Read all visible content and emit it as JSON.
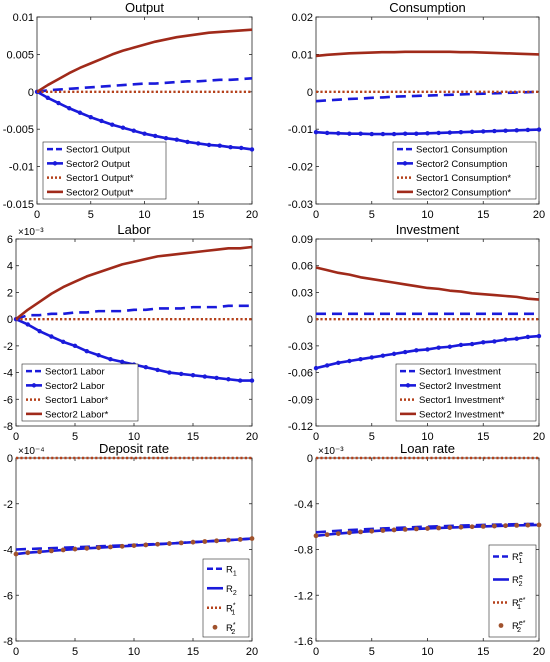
{
  "chart_data": [
    {
      "type": "line",
      "title": "Output",
      "x": [
        0,
        1,
        2,
        3,
        4,
        5,
        6,
        7,
        8,
        9,
        10,
        11,
        12,
        13,
        14,
        15,
        16,
        17,
        18,
        19,
        20
      ],
      "xlim": [
        0,
        20
      ],
      "xticks": [
        0,
        5,
        10,
        15,
        20
      ],
      "ylim": [
        -0.015,
        0.01
      ],
      "yticks": [
        -0.015,
        -0.01,
        -0.005,
        0,
        0.005,
        0.01
      ],
      "yticklabels": [
        "-0.015",
        "-0.01",
        "-0.005",
        "0",
        "0.005",
        "0.01"
      ],
      "multiplier": "",
      "legend_position": "bottom-left",
      "series": [
        {
          "name": "Sector1 Output",
          "style": "dashed",
          "color": "#1a1adb",
          "values": [
            0,
            0.0002,
            0.0003,
            0.0004,
            0.0005,
            0.0006,
            0.0007,
            0.0008,
            0.0009,
            0.001,
            0.0011,
            0.0011,
            0.0012,
            0.0013,
            0.0014,
            0.0014,
            0.0015,
            0.0016,
            0.0016,
            0.0017,
            0.0018
          ]
        },
        {
          "name": "Sector2 Output",
          "style": "solid-dots",
          "color": "#1a1adb",
          "values": [
            0,
            -0.0008,
            -0.0015,
            -0.0022,
            -0.0028,
            -0.0034,
            -0.0039,
            -0.0044,
            -0.0048,
            -0.0052,
            -0.0056,
            -0.0059,
            -0.0062,
            -0.0064,
            -0.0067,
            -0.0069,
            -0.0071,
            -0.0072,
            -0.0074,
            -0.0075,
            -0.0077
          ]
        },
        {
          "name": "Sector1 Output*",
          "style": "dotted",
          "color": "#b5411b",
          "values": [
            0,
            0,
            0,
            0,
            0,
            0,
            0,
            0,
            0,
            0,
            0,
            0,
            0,
            0,
            0,
            0,
            0,
            0,
            0,
            0,
            0
          ]
        },
        {
          "name": "Sector2 Output*",
          "style": "solid",
          "color": "#a02a1a",
          "values": [
            0,
            0.0009,
            0.0017,
            0.0025,
            0.0032,
            0.0038,
            0.0044,
            0.005,
            0.0055,
            0.0059,
            0.0063,
            0.0067,
            0.007,
            0.0073,
            0.0075,
            0.0077,
            0.0079,
            0.008,
            0.0081,
            0.0082,
            0.0083
          ]
        }
      ]
    },
    {
      "type": "line",
      "title": "Consumption",
      "x": [
        0,
        1,
        2,
        3,
        4,
        5,
        6,
        7,
        8,
        9,
        10,
        11,
        12,
        13,
        14,
        15,
        16,
        17,
        18,
        19,
        20
      ],
      "xlim": [
        0,
        20
      ],
      "xticks": [
        0,
        5,
        10,
        15,
        20
      ],
      "ylim": [
        -0.03,
        0.02
      ],
      "yticks": [
        -0.03,
        -0.02,
        -0.01,
        0,
        0.01,
        0.02
      ],
      "yticklabels": [
        "-0.03",
        "-0.02",
        "-0.01",
        "0",
        "0.01",
        "0.02"
      ],
      "multiplier": "",
      "legend_position": "bottom-right",
      "series": [
        {
          "name": "Sector1 Consumption",
          "style": "dashed",
          "color": "#1a1adb",
          "values": [
            -0.0025,
            -0.0023,
            -0.0021,
            -0.0019,
            -0.0018,
            -0.0016,
            -0.0015,
            -0.0013,
            -0.0012,
            -0.0011,
            -0.001,
            -0.0009,
            -0.0008,
            -0.0007,
            -0.0006,
            -0.0005,
            -0.0004,
            -0.0003,
            -0.0002,
            -0.0001,
            0
          ]
        },
        {
          "name": "Sector2 Consumption",
          "style": "solid-dots",
          "color": "#1a1adb",
          "values": [
            -0.0108,
            -0.011,
            -0.0111,
            -0.0112,
            -0.0112,
            -0.0113,
            -0.0113,
            -0.0113,
            -0.0112,
            -0.0112,
            -0.0111,
            -0.011,
            -0.0109,
            -0.0108,
            -0.0107,
            -0.0106,
            -0.0105,
            -0.0104,
            -0.0103,
            -0.0102,
            -0.0101
          ]
        },
        {
          "name": "Sector1 Consumption*",
          "style": "dotted",
          "color": "#b5411b",
          "values": [
            0,
            0,
            0,
            0,
            0,
            0,
            0,
            0,
            0,
            0,
            0,
            0,
            0,
            0,
            0,
            0,
            0,
            0,
            0,
            0,
            0
          ]
        },
        {
          "name": "Sector2 Consumption*",
          "style": "solid",
          "color": "#a02a1a",
          "values": [
            0.0096,
            0.0099,
            0.0101,
            0.0103,
            0.0104,
            0.0105,
            0.0106,
            0.0106,
            0.0107,
            0.0107,
            0.0107,
            0.0107,
            0.0107,
            0.0106,
            0.0106,
            0.0105,
            0.0104,
            0.0103,
            0.0102,
            0.0101,
            0.01
          ]
        }
      ]
    },
    {
      "type": "line",
      "title": "Labor",
      "x": [
        0,
        1,
        2,
        3,
        4,
        5,
        6,
        7,
        8,
        9,
        10,
        11,
        12,
        13,
        14,
        15,
        16,
        17,
        18,
        19,
        20
      ],
      "xlim": [
        0,
        20
      ],
      "xticks": [
        0,
        5,
        10,
        15,
        20
      ],
      "ylim": [
        -0.008,
        0.006
      ],
      "yticks": [
        -0.008,
        -0.006,
        -0.004,
        -0.002,
        0,
        0.002,
        0.004,
        0.006
      ],
      "yticklabels": [
        "-8",
        "-6",
        "-4",
        "-2",
        "0",
        "2",
        "4",
        "6"
      ],
      "multiplier": "×10⁻³",
      "legend_position": "bottom-left",
      "series": [
        {
          "name": "Sector1 Labor",
          "style": "dashed",
          "color": "#1a1adb",
          "values": [
            0,
            0.0003,
            0.0003,
            0.0004,
            0.0004,
            0.0005,
            0.0005,
            0.0006,
            0.0006,
            0.0006,
            0.0007,
            0.0007,
            0.0008,
            0.0008,
            0.0008,
            0.0009,
            0.0009,
            0.0009,
            0.001,
            0.001,
            0.001
          ]
        },
        {
          "name": "Sector2 Labor",
          "style": "solid-dots",
          "color": "#1a1adb",
          "values": [
            0,
            -0.0004,
            -0.0009,
            -0.0013,
            -0.0017,
            -0.002,
            -0.0024,
            -0.0027,
            -0.003,
            -0.0032,
            -0.0034,
            -0.0036,
            -0.0038,
            -0.004,
            -0.0041,
            -0.0042,
            -0.0043,
            -0.0044,
            -0.0045,
            -0.0046,
            -0.0046
          ]
        },
        {
          "name": "Sector1 Labor*",
          "style": "dotted",
          "color": "#b5411b",
          "values": [
            0,
            0,
            0,
            0,
            0,
            0,
            0,
            0,
            0,
            0,
            0,
            0,
            0,
            0,
            0,
            0,
            0,
            0,
            0,
            0,
            0
          ]
        },
        {
          "name": "Sector2 Labor*",
          "style": "solid",
          "color": "#a02a1a",
          "values": [
            0,
            0.0007,
            0.0013,
            0.0019,
            0.0024,
            0.0028,
            0.0032,
            0.0035,
            0.0038,
            0.0041,
            0.0043,
            0.0045,
            0.0047,
            0.0048,
            0.0049,
            0.005,
            0.0051,
            0.0052,
            0.0053,
            0.0053,
            0.0054
          ]
        }
      ]
    },
    {
      "type": "line",
      "title": "Investment",
      "x": [
        0,
        1,
        2,
        3,
        4,
        5,
        6,
        7,
        8,
        9,
        10,
        11,
        12,
        13,
        14,
        15,
        16,
        17,
        18,
        19,
        20
      ],
      "xlim": [
        0,
        20
      ],
      "xticks": [
        0,
        5,
        10,
        15,
        20
      ],
      "ylim": [
        -0.12,
        0.09
      ],
      "yticks": [
        -0.12,
        -0.09,
        -0.06,
        -0.03,
        0,
        0.03,
        0.06,
        0.09
      ],
      "yticklabels": [
        "-0.12",
        "-0.09",
        "-0.06",
        "-0.03",
        "0",
        "0.03",
        "0.06",
        "0.09"
      ],
      "multiplier": "",
      "legend_position": "bottom-right",
      "series": [
        {
          "name": "Sector1 Investment",
          "style": "dashed",
          "color": "#1a1adb",
          "values": [
            0.006,
            0.006,
            0.006,
            0.006,
            0.006,
            0.006,
            0.006,
            0.006,
            0.006,
            0.006,
            0.006,
            0.006,
            0.006,
            0.006,
            0.006,
            0.006,
            0.006,
            0.006,
            0.006,
            0.006,
            0.006
          ]
        },
        {
          "name": "Sector2 Investment",
          "style": "solid-dots",
          "color": "#1a1adb",
          "values": [
            -0.055,
            -0.052,
            -0.049,
            -0.047,
            -0.045,
            -0.043,
            -0.041,
            -0.039,
            -0.037,
            -0.035,
            -0.034,
            -0.032,
            -0.031,
            -0.029,
            -0.028,
            -0.026,
            -0.025,
            -0.023,
            -0.022,
            -0.02,
            -0.019
          ]
        },
        {
          "name": "Sector1 Investment*",
          "style": "dotted",
          "color": "#b5411b",
          "values": [
            0,
            0,
            0,
            0,
            0,
            0,
            0,
            0,
            0,
            0,
            0,
            0,
            0,
            0,
            0,
            0,
            0,
            0,
            0,
            0,
            0
          ]
        },
        {
          "name": "Sector2 Investment*",
          "style": "solid",
          "color": "#a02a1a",
          "values": [
            0.058,
            0.055,
            0.052,
            0.05,
            0.047,
            0.045,
            0.043,
            0.041,
            0.039,
            0.037,
            0.035,
            0.034,
            0.032,
            0.031,
            0.029,
            0.028,
            0.027,
            0.026,
            0.025,
            0.023,
            0.022
          ]
        }
      ]
    },
    {
      "type": "line",
      "title": "Deposit rate",
      "x": [
        0,
        1,
        2,
        3,
        4,
        5,
        6,
        7,
        8,
        9,
        10,
        11,
        12,
        13,
        14,
        15,
        16,
        17,
        18,
        19,
        20
      ],
      "xlim": [
        0,
        20
      ],
      "xticks": [
        0,
        5,
        10,
        15,
        20
      ],
      "ylim": [
        -0.0008,
        0
      ],
      "yticks": [
        -0.0008,
        -0.0006,
        -0.0004,
        -0.0002,
        0
      ],
      "yticklabels": [
        "-8",
        "-6",
        "-4",
        "-2",
        "0"
      ],
      "multiplier": "×10⁻⁴",
      "legend_position": "bottom-right",
      "series": [
        {
          "name": "R1",
          "sub": "1",
          "sup": "",
          "style": "dashed",
          "color": "#1a1adb",
          "values": [
            -0.0004,
            -0.000398,
            -0.000396,
            -0.000394,
            -0.000392,
            -0.00039,
            -0.000388,
            -0.000386,
            -0.000384,
            -0.000382,
            -0.00038,
            -0.000378,
            -0.000376,
            -0.000374,
            -0.000371,
            -0.000368,
            -0.000365,
            -0.000362,
            -0.000359,
            -0.000356,
            -0.000352
          ]
        },
        {
          "name": "R2",
          "sub": "2",
          "sup": "",
          "style": "solid",
          "color": "#1a1adb",
          "values": [
            -0.00042,
            -0.000414,
            -0.00041,
            -0.000406,
            -0.000402,
            -0.000398,
            -0.000395,
            -0.000392,
            -0.000389,
            -0.000386,
            -0.000383,
            -0.00038,
            -0.000377,
            -0.000374,
            -0.000371,
            -0.000368,
            -0.000365,
            -0.000362,
            -0.000359,
            -0.000356,
            -0.000352
          ]
        },
        {
          "name": "R1*",
          "sub": "1",
          "sup": "*",
          "style": "dotted",
          "color": "#b5411b",
          "values": [
            0,
            0,
            0,
            0,
            0,
            0,
            0,
            0,
            0,
            0,
            0,
            0,
            0,
            0,
            0,
            0,
            0,
            0,
            0,
            0,
            0
          ]
        },
        {
          "name": "R2*",
          "sub": "2",
          "sup": "*",
          "style": "dots",
          "color": "#a0522d",
          "values": [
            -0.00042,
            -0.000414,
            -0.00041,
            -0.000406,
            -0.000402,
            -0.000398,
            -0.000395,
            -0.000392,
            -0.000389,
            -0.000386,
            -0.000383,
            -0.00038,
            -0.000377,
            -0.000374,
            -0.000371,
            -0.000368,
            -0.000365,
            -0.000362,
            -0.000359,
            -0.000356,
            -0.000352
          ]
        }
      ]
    },
    {
      "type": "line",
      "title": "Loan rate",
      "x": [
        0,
        1,
        2,
        3,
        4,
        5,
        6,
        7,
        8,
        9,
        10,
        11,
        12,
        13,
        14,
        15,
        16,
        17,
        18,
        19,
        20
      ],
      "xlim": [
        0,
        20
      ],
      "xticks": [
        0,
        5,
        10,
        15,
        20
      ],
      "ylim": [
        -0.0016,
        0
      ],
      "yticks": [
        -0.0016,
        -0.0012,
        -0.0008,
        -0.0004,
        0
      ],
      "yticklabels": [
        "-1.6",
        "-1.2",
        "-0.8",
        "-0.4",
        "0"
      ],
      "multiplier": "×10⁻³",
      "legend_position": "bottom-right",
      "series": [
        {
          "name": "R1e",
          "sub": "1",
          "sup": "e",
          "style": "dashed",
          "color": "#1a1adb",
          "values": [
            -0.00065,
            -0.000643,
            -0.000636,
            -0.00063,
            -0.000625,
            -0.00062,
            -0.000616,
            -0.000612,
            -0.000608,
            -0.000604,
            -0.0006,
            -0.000597,
            -0.000594,
            -0.000591,
            -0.000588,
            -0.000585,
            -0.000583,
            -0.000581,
            -0.000579,
            -0.000577,
            -0.000575
          ]
        },
        {
          "name": "R2e",
          "sub": "2",
          "sup": "e",
          "style": "solid",
          "color": "#1a1adb",
          "values": [
            -0.00068,
            -0.00067,
            -0.000661,
            -0.000653,
            -0.000646,
            -0.00064,
            -0.000634,
            -0.000629,
            -0.000624,
            -0.00062,
            -0.000616,
            -0.000612,
            -0.000608,
            -0.000605,
            -0.000601,
            -0.000598,
            -0.000595,
            -0.000592,
            -0.000589,
            -0.000587,
            -0.000585
          ]
        },
        {
          "name": "R1e*",
          "sub": "1",
          "sup": "e*",
          "style": "dotted",
          "color": "#b5411b",
          "values": [
            0,
            0,
            0,
            0,
            0,
            0,
            0,
            0,
            0,
            0,
            0,
            0,
            0,
            0,
            0,
            0,
            0,
            0,
            0,
            0,
            0
          ]
        },
        {
          "name": "R2e*",
          "sub": "2",
          "sup": "e*",
          "style": "dots",
          "color": "#a0522d",
          "values": [
            -0.00068,
            -0.00067,
            -0.000661,
            -0.000653,
            -0.000646,
            -0.00064,
            -0.000634,
            -0.000629,
            -0.000624,
            -0.00062,
            -0.000616,
            -0.000612,
            -0.000608,
            -0.000605,
            -0.000601,
            -0.000598,
            -0.000595,
            -0.000592,
            -0.000589,
            -0.000587,
            -0.000585
          ]
        }
      ]
    }
  ]
}
